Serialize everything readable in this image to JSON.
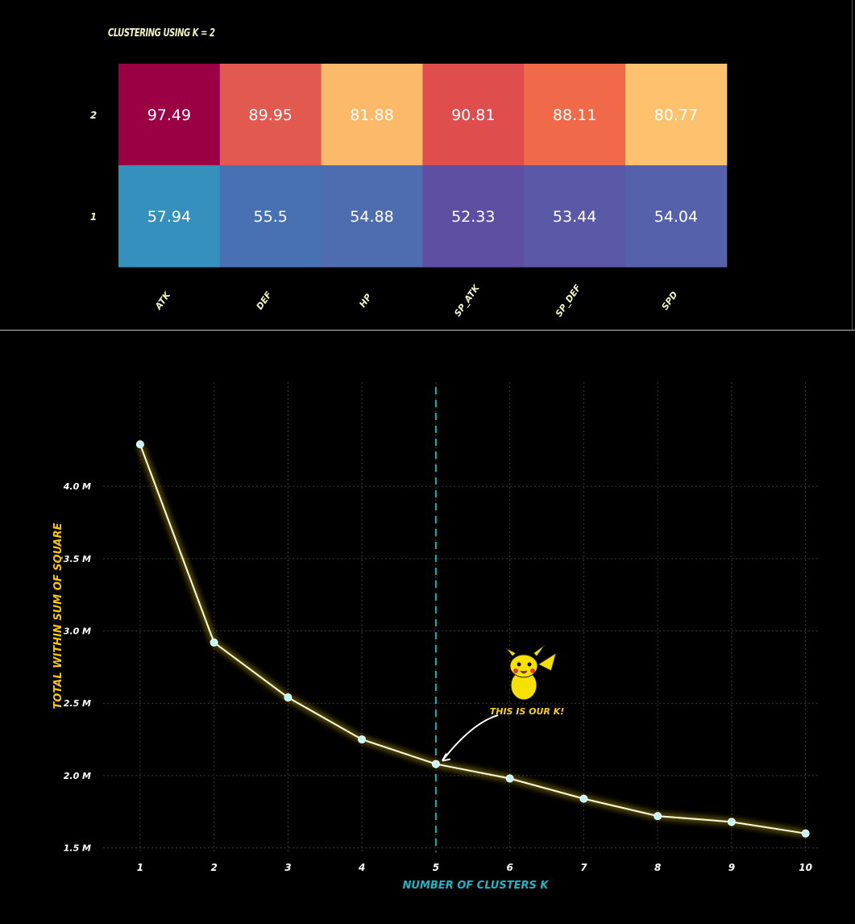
{
  "chart_data": [
    {
      "type": "heatmap",
      "title": "CLUSTERING USING K = 2",
      "columns": [
        "ATK",
        "DEF",
        "HP",
        "SP_ATK",
        "SP_DEF",
        "SPD"
      ],
      "rows": [
        "2",
        "1"
      ],
      "values": [
        [
          97.49,
          89.95,
          81.88,
          90.81,
          88.11,
          80.77
        ],
        [
          57.94,
          55.5,
          54.88,
          52.33,
          53.44,
          54.04
        ]
      ],
      "cell_labels": [
        [
          "97.49",
          "89.95",
          "81.88",
          "90.81",
          "88.11",
          "80.77"
        ],
        [
          "57.94",
          "55.5",
          "54.88",
          "52.33",
          "53.44",
          "54.04"
        ]
      ],
      "colors": [
        [
          "#9b0045",
          "#e25a4f",
          "#fdb96a",
          "#df4e4c",
          "#f06a49",
          "#fec26f"
        ],
        [
          "#3690bd",
          "#4771b2",
          "#4e6db0",
          "#5e4fa2",
          "#5959a8",
          "#5561ab"
        ]
      ]
    },
    {
      "type": "line",
      "xlabel": "NUMBER OF CLUSTERS K",
      "ylabel": "TOTAL WITHIN SUM OF SQUARE",
      "x": [
        1,
        2,
        3,
        4,
        5,
        6,
        7,
        8,
        9,
        10
      ],
      "values": [
        4.29,
        2.92,
        2.54,
        2.25,
        2.08,
        1.98,
        1.84,
        1.72,
        1.68,
        1.6
      ],
      "x_ticks": [
        "1",
        "2",
        "3",
        "4",
        "5",
        "6",
        "7",
        "8",
        "9",
        "10"
      ],
      "y_ticks": [
        {
          "value": 1.5,
          "label": "1.5 M"
        },
        {
          "value": 2.0,
          "label": "2.0 M"
        },
        {
          "value": 2.5,
          "label": "2.5 M"
        },
        {
          "value": 3.0,
          "label": "3.0 M"
        },
        {
          "value": 3.5,
          "label": "3.5 M"
        },
        {
          "value": 4.0,
          "label": "4.0 M"
        }
      ],
      "xlim": [
        0.5,
        10.2
      ],
      "ylim": [
        1.47,
        4.72
      ],
      "grid": true,
      "highlight_x": 5,
      "annotation": "THIS IS OUR K!",
      "line_color": "#fffde0",
      "glow_color": "#f5d020",
      "marker_color": "#bff5f5",
      "vline_color": "#1ab0b8",
      "ylabel_color": "#f5c518",
      "xlabel_color": "#1fb5c4"
    }
  ]
}
